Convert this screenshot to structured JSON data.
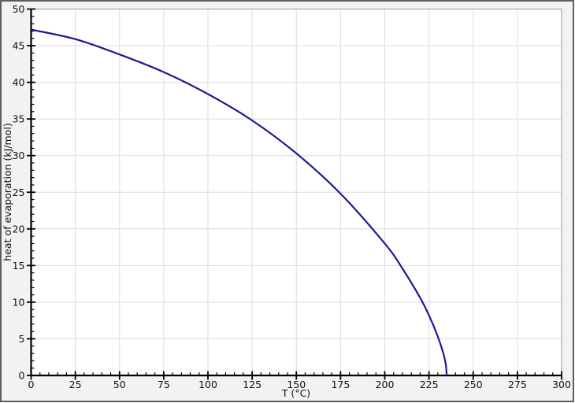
{
  "chart_data": {
    "type": "line",
    "title": "",
    "xlabel": "T (°C)",
    "ylabel": "heat of evaporation (kJ/mol)",
    "xlim": [
      0,
      300
    ],
    "ylim": [
      0,
      50
    ],
    "x_ticks": [
      0,
      25,
      50,
      75,
      100,
      125,
      150,
      175,
      200,
      225,
      250,
      275,
      300
    ],
    "y_ticks": [
      0,
      5,
      10,
      15,
      20,
      25,
      30,
      35,
      40,
      45,
      50
    ],
    "x_minor_step": 5,
    "y_minor_step": 1,
    "grid": true,
    "legend": "none",
    "series": [
      {
        "name": "heat of evaporation",
        "color": "#1a1a96",
        "points": [
          [
            0,
            47.2
          ],
          [
            25,
            45.9
          ],
          [
            50,
            43.8
          ],
          [
            75,
            41.4
          ],
          [
            100,
            38.4
          ],
          [
            125,
            34.8
          ],
          [
            150,
            30.3
          ],
          [
            175,
            24.8
          ],
          [
            200,
            18.0
          ],
          [
            210,
            14.6
          ],
          [
            220,
            10.6
          ],
          [
            225,
            8.2
          ],
          [
            230,
            5.3
          ],
          [
            233,
            3.1
          ],
          [
            234.5,
            1.5
          ],
          [
            235,
            0
          ]
        ]
      }
    ]
  },
  "colors": {
    "curve": "#1a1a96",
    "grid": "#dcdcdc",
    "axis": "#000000",
    "plot_frame": "#aaaaaa",
    "plot_background": "#ffffff",
    "margin_background": "#f2f2f2",
    "outer_border": "#5e5e5e",
    "text": "#111111"
  }
}
